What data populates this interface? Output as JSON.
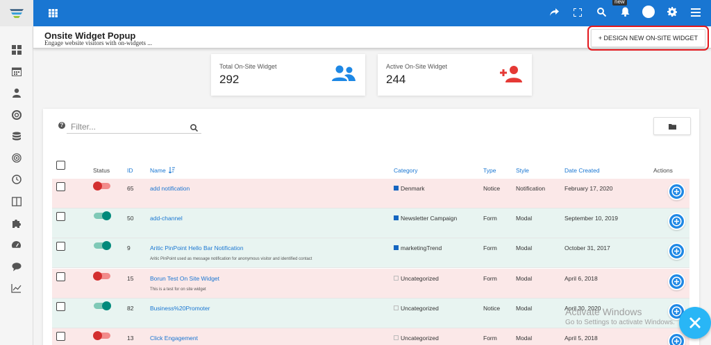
{
  "header": {
    "title": "Onsite Widget Popup",
    "subtitle": "Engage website visitors with on-widgets ...",
    "design_button": "+ DESIGN NEW ON-SITE WIDGET"
  },
  "topbar": {
    "new_badge": "new"
  },
  "stats": {
    "total": {
      "label": "Total On-Site Widget",
      "value": "292"
    },
    "active": {
      "label": "Active On-Site Widget",
      "value": "244"
    }
  },
  "toolbar": {
    "filter_placeholder": "Filter..."
  },
  "table": {
    "columns": {
      "status": "Status",
      "id": "ID",
      "name": "Name",
      "category": "Category",
      "type": "Type",
      "style": "Style",
      "date_created": "Date Created",
      "actions": "Actions"
    },
    "rows": [
      {
        "status": "off",
        "id": "65",
        "name": "add notification",
        "description": "",
        "category": "Denmark",
        "category_filled": true,
        "type": "Notice",
        "style": "Notification",
        "date": "February 17, 2020"
      },
      {
        "status": "on",
        "id": "50",
        "name": "add-channel",
        "description": "",
        "category": "Newsletter Campaign",
        "category_filled": true,
        "type": "Form",
        "style": "Modal",
        "date": "September 10, 2019"
      },
      {
        "status": "on",
        "id": "9",
        "name": "Aritic PinPoint Hello Bar Notification",
        "description": "Aritic PinPoint used as message notification for anonymous visitor and identified contact",
        "category": "marketingTrend",
        "category_filled": true,
        "type": "Form",
        "style": "Modal",
        "date": "October 31, 2017"
      },
      {
        "status": "off",
        "id": "15",
        "name": "Borun Test On Site Widget",
        "description": "This is a test for on site widget",
        "category": "Uncategorized",
        "category_filled": false,
        "type": "Form",
        "style": "Modal",
        "date": "April 6, 2018"
      },
      {
        "status": "on",
        "id": "82",
        "name": "Business%20Promoter",
        "description": "",
        "category": "Uncategorized",
        "category_filled": false,
        "type": "Notice",
        "style": "Modal",
        "date": "April 30, 2020"
      },
      {
        "status": "off",
        "id": "13",
        "name": "Click Engagement",
        "description": "",
        "category": "Uncategorized",
        "category_filled": false,
        "type": "Form",
        "style": "Modal",
        "date": "April 5, 2018"
      }
    ]
  },
  "watermark": {
    "line1": "Activate Windows",
    "line2": "Go to Settings to activate Windows."
  },
  "colors": {
    "topbar": "#1976d2",
    "link": "#1976d2",
    "row_inactive": "#fbe8e8",
    "row_active": "#e8f4f1",
    "toggle_on": "#00897b",
    "toggle_off": "#d32f2f",
    "stat_total_icon": "#1e88e5",
    "stat_active_icon": "#e53935",
    "highlight_box": "#e3161b",
    "close_fab": "#29b6f6"
  },
  "icons": {
    "topbar": [
      "grid-icon",
      "share-icon",
      "fullscreen-icon",
      "search-icon",
      "bell-icon",
      "user-avatar",
      "gear-icon",
      "menu-icon"
    ],
    "sidebar": [
      "dashboard-icon",
      "calendar-icon",
      "contacts-icon",
      "support-icon",
      "database-icon",
      "target-icon",
      "clock-icon",
      "columns-icon",
      "puzzle-icon",
      "gauge-icon",
      "chat-icon",
      "trend-chart-icon"
    ]
  }
}
